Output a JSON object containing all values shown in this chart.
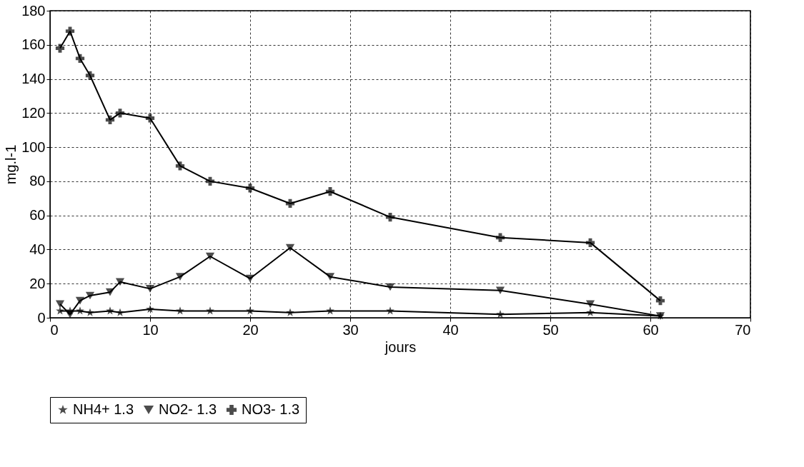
{
  "chart_data": {
    "type": "line",
    "xlabel": "jours",
    "ylabel": "mg.l-1",
    "x": [
      1,
      2,
      3,
      4,
      6,
      7,
      10,
      13,
      16,
      20,
      24,
      28,
      34,
      45,
      54,
      61
    ],
    "series": [
      {
        "name": "NH4+ 1.3",
        "color": "#000000",
        "marker": "star",
        "values": [
          4,
          4,
          4,
          3,
          4,
          3,
          5,
          4,
          4,
          4,
          3,
          4,
          4,
          2,
          3,
          1
        ]
      },
      {
        "name": "NO2- 1.3",
        "color": "#000000",
        "marker": "triangle",
        "values": [
          8,
          2,
          10,
          13,
          15,
          21,
          17,
          24,
          36,
          23,
          41,
          24,
          18,
          16,
          8,
          1
        ]
      },
      {
        "name": "NO3- 1.3",
        "color": "#000000",
        "marker": "cross",
        "values": [
          158,
          168,
          152,
          142,
          116,
          120,
          117,
          89,
          80,
          76,
          67,
          74,
          59,
          47,
          44,
          10
        ]
      }
    ],
    "xlim": [
      0,
      70
    ],
    "xticks": [
      0,
      10,
      20,
      30,
      40,
      50,
      60,
      70
    ],
    "ylim": [
      0,
      180
    ],
    "yticks": [
      0,
      20,
      40,
      60,
      80,
      100,
      120,
      140,
      160,
      180
    ],
    "grid": true,
    "legend": "bottom",
    "line_style": "solid"
  }
}
